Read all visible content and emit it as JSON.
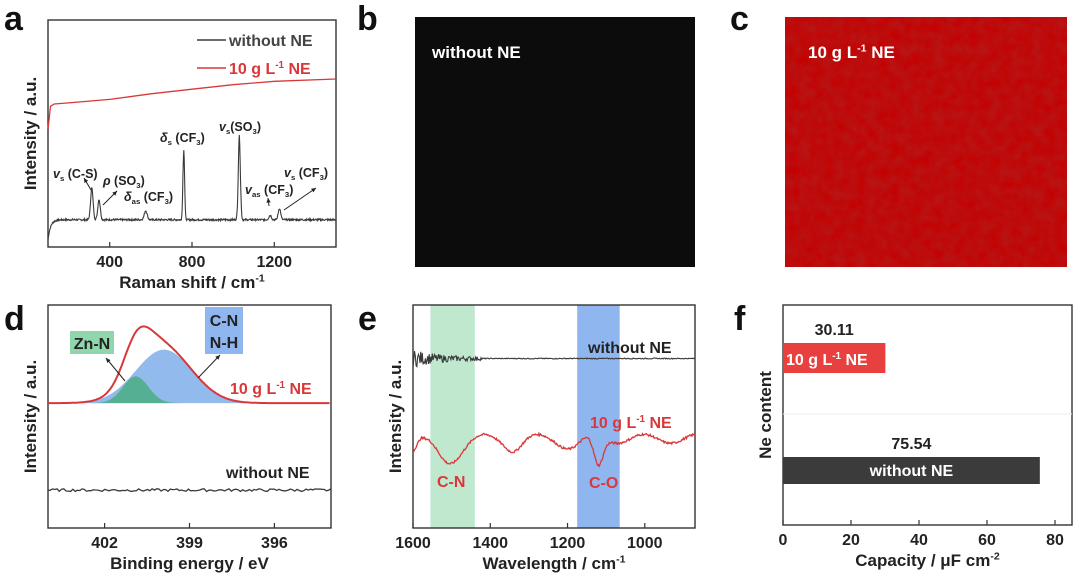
{
  "panel_labels": [
    "a",
    "b",
    "c",
    "d",
    "e",
    "f"
  ],
  "colors": {
    "without": "#3a3a3a",
    "with": "#d9383a",
    "green_band": "#bfe8cf",
    "blue_band": "#8fb6ee",
    "green_fill": "#4fae8a",
    "blue_fill": "#86b2ea",
    "bar_red": "#e8403f",
    "bar_dark": "#3b3b3b"
  },
  "images": {
    "b": {
      "label": [
        {
          "t": "without NE"
        }
      ]
    },
    "c": {
      "label": [
        {
          "t": "10 g L"
        },
        {
          "t": "-1",
          "sup": true
        },
        {
          "t": " NE"
        }
      ]
    }
  },
  "chart_data": [
    {
      "id": "a",
      "type": "line",
      "xlabel": [
        {
          "t": "Raman shift / cm"
        },
        {
          "t": "-1",
          "sup": true
        }
      ],
      "ylabel": "Intensity / a.u.",
      "xlim": [
        100,
        1500
      ],
      "ylim": [
        0,
        1
      ],
      "xticks": [
        400,
        800,
        1200
      ],
      "legend_position": "top-right",
      "legend": [
        {
          "parts": [
            {
              "t": "without NE"
            }
          ],
          "series": 0
        },
        {
          "parts": [
            {
              "t": "10 g L"
            },
            {
              "t": "-1",
              "sup": true
            },
            {
              "t": " NE"
            }
          ],
          "series": 1
        }
      ],
      "series": [
        {
          "name": "without NE",
          "baseline": 0.12,
          "peaks": [
            {
              "center": 313,
              "height": 0.14,
              "width": 6
            },
            {
              "center": 348,
              "height": 0.09,
              "width": 6
            },
            {
              "center": 575,
              "height": 0.04,
              "width": 7
            },
            {
              "center": 760,
              "height": 0.31,
              "width": 4
            },
            {
              "center": 1030,
              "height": 0.37,
              "width": 5
            },
            {
              "center": 1180,
              "height": 0.02,
              "width": 6
            },
            {
              "center": 1225,
              "height": 0.05,
              "width": 6
            }
          ]
        },
        {
          "name": "10 g L-1 NE",
          "points": [
            [
              100,
              0.52
            ],
            [
              112,
              0.62
            ],
            [
              130,
              0.63
            ],
            [
              200,
              0.635
            ],
            [
              400,
              0.65
            ],
            [
              600,
              0.675
            ],
            [
              800,
              0.695
            ],
            [
              1000,
              0.715
            ],
            [
              1200,
              0.73
            ],
            [
              1500,
              0.74
            ]
          ]
        }
      ],
      "annotations": [
        [
          {
            "t": "v",
            "it": true
          },
          {
            "t": "s",
            "sub": true
          },
          {
            "t": " (C-S)"
          }
        ],
        [
          {
            "t": "ρ",
            "it": true
          },
          {
            "t": " (SO"
          },
          {
            "t": "3",
            "sub": true
          },
          {
            "t": ")"
          }
        ],
        [
          {
            "t": "δ",
            "it": true
          },
          {
            "t": "as",
            "sub": true
          },
          {
            "t": " (CF"
          },
          {
            "t": "3",
            "sub": true
          },
          {
            "t": ")"
          }
        ],
        [
          {
            "t": "δ",
            "it": true
          },
          {
            "t": "s",
            "sub": true
          },
          {
            "t": " (CF"
          },
          {
            "t": "3",
            "sub": true
          },
          {
            "t": ")"
          }
        ],
        [
          {
            "t": "v",
            "it": true
          },
          {
            "t": "s",
            "sub": true
          },
          {
            "t": "(SO"
          },
          {
            "t": "3",
            "sub": true
          },
          {
            "t": ")"
          }
        ],
        [
          {
            "t": "v",
            "it": true
          },
          {
            "t": "as",
            "sub": true
          },
          {
            "t": " (CF"
          },
          {
            "t": "3",
            "sub": true
          },
          {
            "t": ")"
          }
        ],
        [
          {
            "t": "v",
            "it": true
          },
          {
            "t": "s",
            "sub": true
          },
          {
            "t": " (CF"
          },
          {
            "t": "3",
            "sub": true
          },
          {
            "t": ")"
          }
        ]
      ]
    },
    {
      "id": "d",
      "type": "line",
      "xlabel": [
        {
          "t": "Binding energy / eV"
        }
      ],
      "ylabel": "Intensity / a.u.",
      "xlim": [
        404,
        394
      ],
      "ylim": [
        0,
        1
      ],
      "xticks": [
        402,
        399,
        396
      ],
      "series": [
        {
          "name": "10 g L-1 NE",
          "baseline": 0.56,
          "components": [
            0,
            1
          ]
        },
        {
          "name": "without NE",
          "baseline": 0.17
        }
      ],
      "components": [
        {
          "name": "Zn-N",
          "center": 400.9,
          "height": 0.12,
          "sigma": 0.45
        },
        {
          "name": "C-N N-H",
          "center": 399.9,
          "height": 0.24,
          "sigma": 1.0
        }
      ],
      "annotations": {
        "zn_n": "Zn-N",
        "c_n": "C-N",
        "n_h": "N-H",
        "with": [
          {
            "t": "10 g L"
          },
          {
            "t": "-1",
            "sup": true
          },
          {
            "t": " NE"
          }
        ],
        "without": [
          {
            "t": "without NE"
          }
        ]
      }
    },
    {
      "id": "e",
      "type": "line",
      "xlabel": [
        {
          "t": "Wavelength / cm"
        },
        {
          "t": "-1",
          "sup": true
        }
      ],
      "ylabel": "Intensity / a.u.",
      "xlim": [
        1600,
        870
      ],
      "ylim": [
        0,
        1
      ],
      "xticks": [
        1600,
        1400,
        1200,
        1000
      ],
      "bands": [
        {
          "name": "C-N",
          "range": [
            1555,
            1440
          ]
        },
        {
          "name": "C-O",
          "range": [
            1175,
            1065
          ]
        }
      ],
      "series": [
        {
          "name": "without NE",
          "baseline": 0.76
        },
        {
          "name": "10 g L-1 NE",
          "baseline": 0.4,
          "dips": [
            {
              "center": 1510,
              "depth": 0.1,
              "width": 30
            },
            {
              "center": 1120,
              "depth": 0.13,
              "width": 12
            },
            {
              "center": 1340,
              "depth": 0.04,
              "width": 20
            },
            {
              "center": 1190,
              "depth": 0.03,
              "width": 25
            }
          ]
        }
      ],
      "annotations": {
        "without": [
          {
            "t": "without NE"
          }
        ],
        "with": [
          {
            "t": "10 g L"
          },
          {
            "t": "-1",
            "sup": true
          },
          {
            "t": " NE"
          }
        ],
        "c_n": "C-N",
        "c_o": "C-O"
      }
    },
    {
      "id": "f",
      "type": "bar",
      "orientation": "horizontal",
      "xlabel": [
        {
          "t": "Capacity / μF cm"
        },
        {
          "t": "-2",
          "sup": true
        }
      ],
      "ylabel": "Ne content",
      "xlim": [
        0,
        85
      ],
      "xticks": [
        0,
        20,
        40,
        60,
        80
      ],
      "categories": [
        [
          {
            "t": "10 g L"
          },
          {
            "t": "-1",
            "sup": true
          },
          {
            "t": " NE"
          }
        ],
        [
          {
            "t": "without NE"
          }
        ]
      ],
      "values": [
        30.11,
        75.54
      ],
      "value_labels": [
        "30.11",
        "75.54"
      ]
    }
  ]
}
